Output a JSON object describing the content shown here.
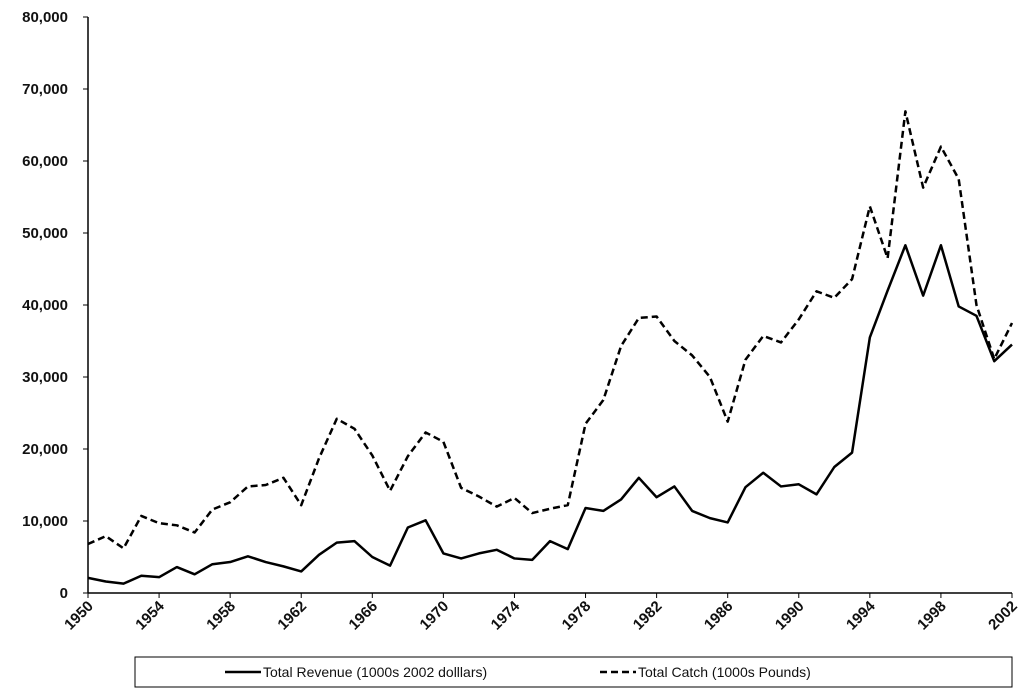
{
  "chart_data": {
    "type": "line",
    "x": [
      1950,
      1951,
      1952,
      1953,
      1954,
      1955,
      1956,
      1957,
      1958,
      1959,
      1960,
      1961,
      1962,
      1963,
      1964,
      1965,
      1966,
      1967,
      1968,
      1969,
      1970,
      1971,
      1972,
      1973,
      1974,
      1975,
      1976,
      1977,
      1978,
      1979,
      1980,
      1981,
      1982,
      1983,
      1984,
      1985,
      1986,
      1987,
      1988,
      1989,
      1990,
      1991,
      1992,
      1993,
      1994,
      1995,
      1996,
      1997,
      1998,
      1999,
      2000,
      2001,
      2002
    ],
    "series": [
      {
        "name": "Total Revenue (1000s 2002 dolllars)",
        "color": "#000000",
        "dash": false,
        "values": [
          2100,
          1600,
          1300,
          2400,
          2200,
          3600,
          2600,
          4000,
          4300,
          5100,
          4300,
          3700,
          3000,
          5300,
          7000,
          7200,
          5000,
          3800,
          9100,
          10100,
          5500,
          4800,
          5500,
          6000,
          4800,
          4600,
          7200,
          6100,
          11800,
          11400,
          13000,
          16000,
          13300,
          14800,
          11400,
          10400,
          9800,
          14700,
          16700,
          14800,
          15100,
          13700,
          17500,
          19500,
          35500,
          42000,
          48300,
          41300,
          48300,
          39800,
          38500,
          32200,
          34500
        ]
      },
      {
        "name": "Total Catch (1000s Pounds)",
        "color": "#000000",
        "dash": true,
        "values": [
          6800,
          7900,
          6200,
          10700,
          9700,
          9400,
          8400,
          11600,
          12600,
          14800,
          15000,
          16000,
          12200,
          18700,
          24200,
          22800,
          19100,
          14200,
          19000,
          22300,
          21000,
          14600,
          13400,
          12000,
          13200,
          11100,
          11700,
          12200,
          23500,
          26800,
          34300,
          38200,
          38400,
          35000,
          33000,
          30000,
          23800,
          32400,
          35700,
          34800,
          38000,
          41900,
          41000,
          43600,
          53700,
          46500,
          66900,
          56300,
          62000,
          57500,
          40000,
          32500,
          37500
        ]
      }
    ],
    "xlim": [
      1950,
      2002
    ],
    "xticks": [
      1950,
      1954,
      1958,
      1962,
      1966,
      1970,
      1974,
      1978,
      1982,
      1986,
      1990,
      1994,
      1998,
      2002
    ],
    "ylim": [
      0,
      80000
    ],
    "yticks": [
      0,
      {
        "value": 10000,
        "label": "10,000"
      },
      {
        "value": 20000,
        "label": "20,000"
      },
      {
        "value": 30000,
        "label": "30,000"
      },
      {
        "value": 40000,
        "label": "40,000"
      },
      {
        "value": 50000,
        "label": "50,000"
      },
      {
        "value": 60000,
        "label": "60,000"
      },
      {
        "value": 70000,
        "label": "70,000"
      },
      {
        "value": 80000,
        "label": "80,000"
      }
    ],
    "legend": "bottom"
  }
}
